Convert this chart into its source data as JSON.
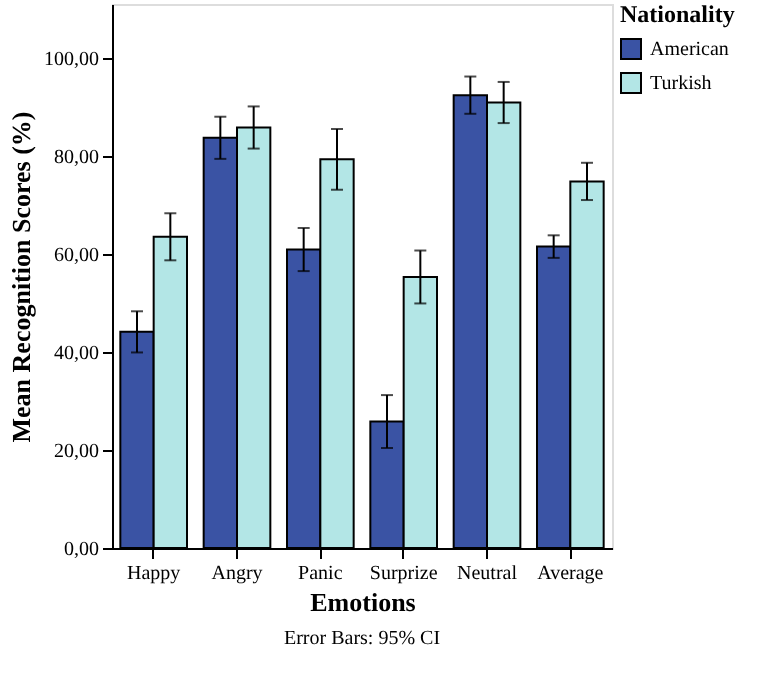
{
  "chart_data": {
    "type": "bar",
    "xlabel": "Emotions",
    "ylabel": "Mean Recognition Scores (%)",
    "legend_title": "Nationality",
    "categories": [
      "Happy",
      "Angry",
      "Panic",
      "Surprize",
      "Neutral",
      "Average"
    ],
    "series": [
      {
        "name": "American",
        "color": "#3a53a4",
        "values": [
          44.1,
          83.7,
          60.9,
          25.8,
          92.4,
          61.5
        ],
        "errors": [
          4.2,
          4.3,
          4.4,
          5.4,
          3.8,
          2.3
        ]
      },
      {
        "name": "Turkish",
        "color": "#b3e6e6",
        "values": [
          63.5,
          85.8,
          79.3,
          55.3,
          90.9,
          74.8
        ],
        "errors": [
          4.8,
          4.3,
          6.2,
          5.4,
          4.2,
          3.8
        ]
      }
    ],
    "ylim": [
      0,
      111
    ],
    "yticks": [
      {
        "value": 0,
        "label": "0,00"
      },
      {
        "value": 20,
        "label": "20,00"
      },
      {
        "value": 40,
        "label": "40,00"
      },
      {
        "value": 60,
        "label": "60,00"
      },
      {
        "value": 80,
        "label": "80,00"
      },
      {
        "value": 100,
        "label": "100,00"
      }
    ],
    "grid": false,
    "legend": "top right",
    "annotations": [
      "Error Bars: 95% CI"
    ]
  }
}
